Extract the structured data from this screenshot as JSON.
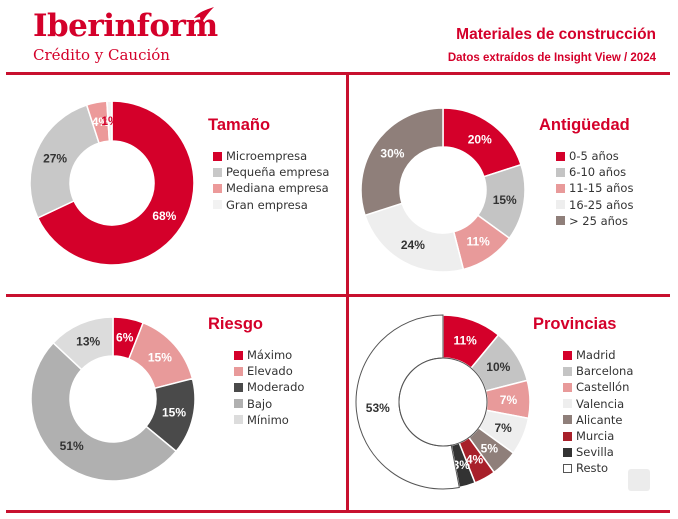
{
  "header": {
    "logo_main": "Iberinform",
    "logo_sub": "Crédito y Caución",
    "title": "Materiales de construcción",
    "subtitle": "Datos extraídos de Insight View / 2024"
  },
  "colors": {
    "brand_red": "#d4002a",
    "rule_red": "#c8102e"
  },
  "chart_data": [
    {
      "type": "pie",
      "title": "Tamaño",
      "categories": [
        "Microempresa",
        "Pequeña empresa",
        "Mediana empresa",
        "Gran empresa"
      ],
      "values": [
        68,
        27,
        4,
        1
      ],
      "labels": [
        "68%",
        "27%",
        "4%",
        "1%"
      ],
      "colors": [
        "#d4002a",
        "#c8c8c8",
        "#ec9a9a",
        "#f2f2f2"
      ],
      "label_colors": [
        "#ffffff",
        "#333333",
        "#ffffff",
        "#d4002a"
      ],
      "legend": "right"
    },
    {
      "type": "pie",
      "title": "Antigüedad",
      "categories": [
        "0-5 años",
        "6-10 años",
        "11-15 años",
        "16-25 años",
        "> 25 años"
      ],
      "values": [
        20,
        15,
        11,
        24,
        30
      ],
      "labels": [
        "20%",
        "15%",
        "11%",
        "24%",
        "30%"
      ],
      "colors": [
        "#d4002a",
        "#c4c4c4",
        "#e89a9a",
        "#eeeeee",
        "#8f7f7a"
      ],
      "label_colors": [
        "#ffffff",
        "#333333",
        "#ffffff",
        "#333333",
        "#ffffff"
      ],
      "legend": "right"
    },
    {
      "type": "pie",
      "title": "Riesgo",
      "categories": [
        "Máximo",
        "Elevado",
        "Moderado",
        "Bajo",
        "Mínimo"
      ],
      "values": [
        6,
        15,
        15,
        51,
        13
      ],
      "labels": [
        "6%",
        "15%",
        "15%",
        "51%",
        "13%"
      ],
      "colors": [
        "#d4002a",
        "#e89a9a",
        "#4a4a4a",
        "#b0b0b0",
        "#dcdcdc"
      ],
      "label_colors": [
        "#ffffff",
        "#ffffff",
        "#ffffff",
        "#333333",
        "#333333"
      ],
      "legend": "right"
    },
    {
      "type": "pie",
      "title": "Provincias",
      "categories": [
        "Madrid",
        "Barcelona",
        "Castellón",
        "Valencia",
        "Alicante",
        "Murcia",
        "Sevilla",
        "Resto"
      ],
      "values": [
        11,
        10,
        7,
        7,
        5,
        4,
        3,
        53
      ],
      "labels": [
        "11%",
        "10%",
        "7%",
        "7%",
        "5%",
        "4%",
        "3%",
        "53%"
      ],
      "colors": [
        "#d4002a",
        "#c4c4c4",
        "#e89a9a",
        "#eeeeee",
        "#8f7f7a",
        "#a8202a",
        "#333333",
        "#ffffff"
      ],
      "label_colors": [
        "#ffffff",
        "#333333",
        "#ffffff",
        "#333333",
        "#ffffff",
        "#ffffff",
        "#ffffff",
        "#333333"
      ],
      "legend": "right"
    }
  ]
}
